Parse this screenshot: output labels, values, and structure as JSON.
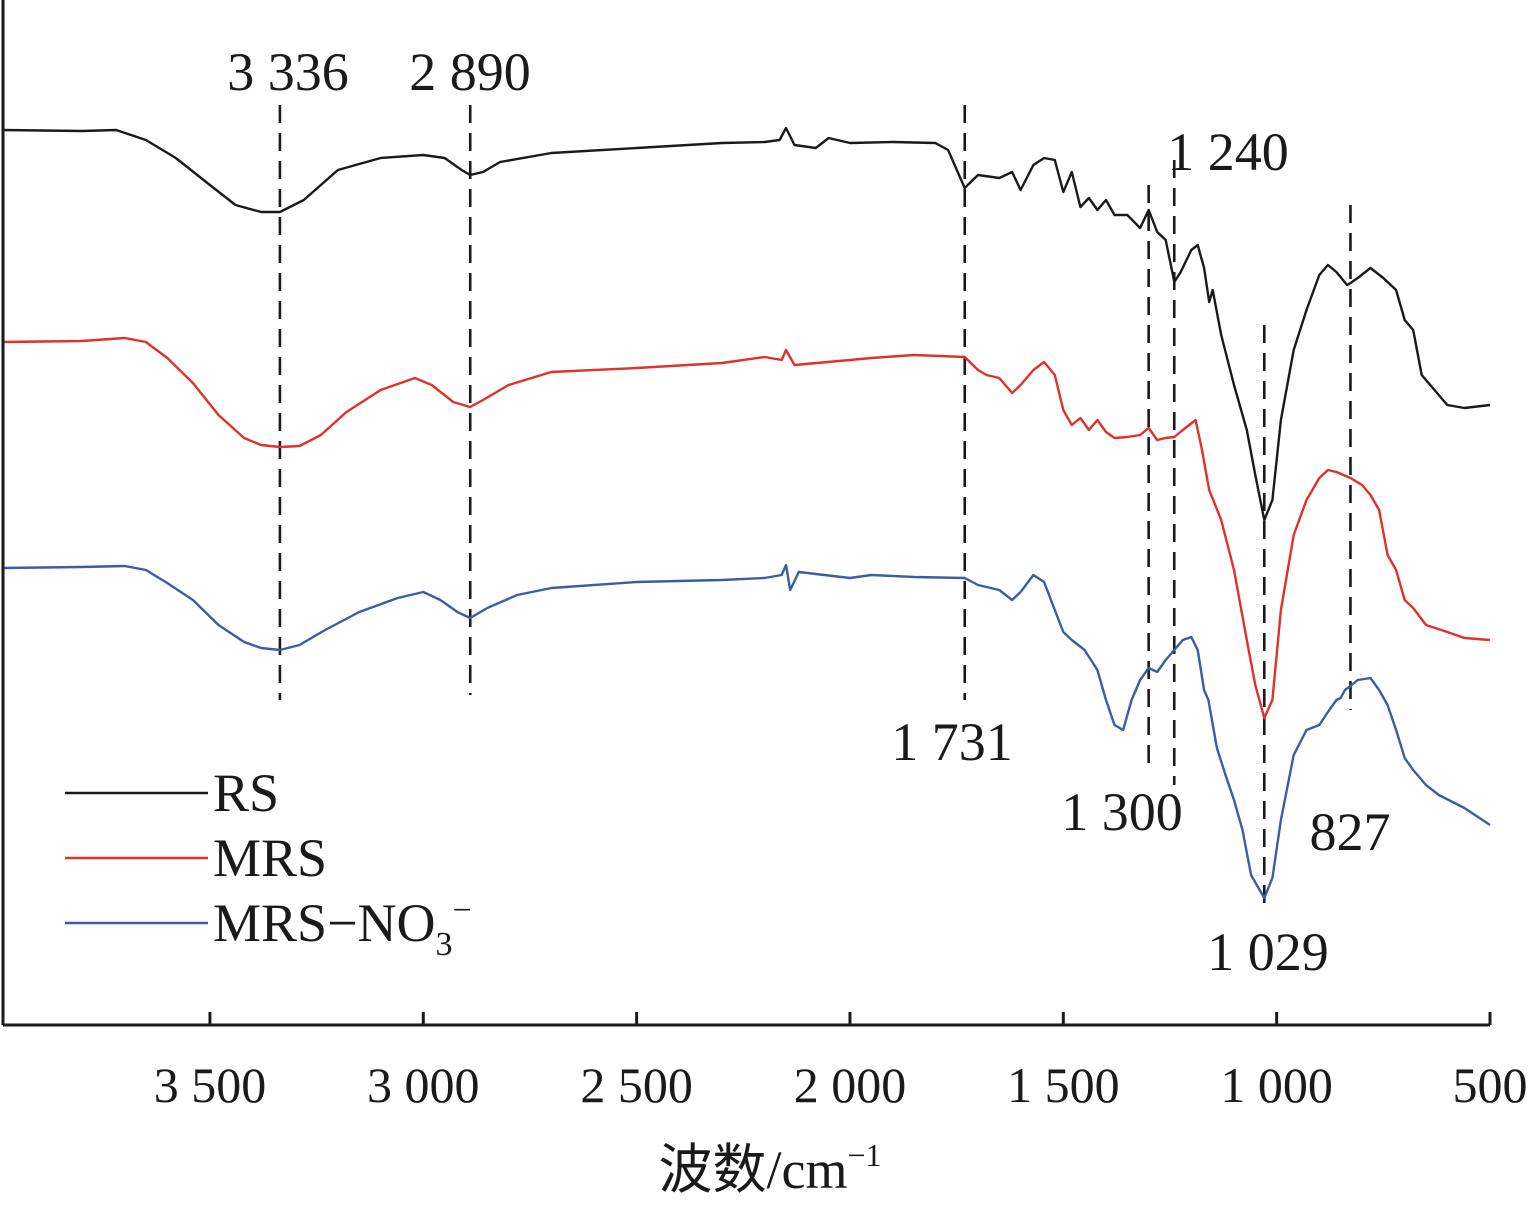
{
  "chart_data": {
    "type": "line",
    "title": "",
    "xlabel": "波数/cm",
    "xlabel_superscript": "−1",
    "ylabel": "",
    "xlim": [
      3985,
      500
    ],
    "x_reversed": true,
    "y_units": "arbitrary (transmittance, offset)",
    "xticks": [
      3500,
      3000,
      2500,
      2000,
      1500,
      1000,
      500
    ],
    "xtick_labels": [
      "3 500",
      "3 000",
      "2 500",
      "2 000",
      "1 500",
      "1 000",
      "500"
    ],
    "series": [
      {
        "name": "RS",
        "color": "#1a1a1a",
        "points": [
          [
            3985,
            130
          ],
          [
            3800,
            131
          ],
          [
            3720,
            130
          ],
          [
            3650,
            140
          ],
          [
            3580,
            158
          ],
          [
            3500,
            185
          ],
          [
            3440,
            205
          ],
          [
            3380,
            212
          ],
          [
            3336,
            212
          ],
          [
            3280,
            200
          ],
          [
            3200,
            170
          ],
          [
            3100,
            158
          ],
          [
            3000,
            155
          ],
          [
            2950,
            158
          ],
          [
            2910,
            170
          ],
          [
            2890,
            175
          ],
          [
            2860,
            172
          ],
          [
            2820,
            162
          ],
          [
            2700,
            153
          ],
          [
            2500,
            148
          ],
          [
            2300,
            143
          ],
          [
            2200,
            142
          ],
          [
            2165,
            140
          ],
          [
            2150,
            128
          ],
          [
            2130,
            145
          ],
          [
            2080,
            148
          ],
          [
            2050,
            138
          ],
          [
            2000,
            143
          ],
          [
            1900,
            142
          ],
          [
            1800,
            143
          ],
          [
            1770,
            150
          ],
          [
            1731,
            188
          ],
          [
            1700,
            175
          ],
          [
            1650,
            178
          ],
          [
            1620,
            172
          ],
          [
            1600,
            190
          ],
          [
            1570,
            165
          ],
          [
            1545,
            158
          ],
          [
            1520,
            160
          ],
          [
            1500,
            192
          ],
          [
            1480,
            172
          ],
          [
            1460,
            207
          ],
          [
            1440,
            198
          ],
          [
            1420,
            210
          ],
          [
            1400,
            200
          ],
          [
            1380,
            215
          ],
          [
            1350,
            215
          ],
          [
            1320,
            228
          ],
          [
            1300,
            210
          ],
          [
            1280,
            232
          ],
          [
            1260,
            240
          ],
          [
            1240,
            282
          ],
          [
            1225,
            272
          ],
          [
            1200,
            250
          ],
          [
            1185,
            245
          ],
          [
            1170,
            268
          ],
          [
            1158,
            302
          ],
          [
            1150,
            290
          ],
          [
            1130,
            335
          ],
          [
            1100,
            385
          ],
          [
            1070,
            430
          ],
          [
            1050,
            475
          ],
          [
            1029,
            520
          ],
          [
            1010,
            500
          ],
          [
            990,
            420
          ],
          [
            960,
            350
          ],
          [
            930,
            310
          ],
          [
            900,
            275
          ],
          [
            880,
            265
          ],
          [
            860,
            272
          ],
          [
            835,
            285
          ],
          [
            827,
            283
          ],
          [
            810,
            278
          ],
          [
            780,
            268
          ],
          [
            750,
            278
          ],
          [
            720,
            290
          ],
          [
            700,
            320
          ],
          [
            680,
            330
          ],
          [
            660,
            375
          ],
          [
            630,
            390
          ],
          [
            600,
            405
          ],
          [
            560,
            408
          ],
          [
            500,
            405
          ]
        ]
      },
      {
        "name": "MRS",
        "color": "#e0312b",
        "points": [
          [
            3985,
            342
          ],
          [
            3800,
            341
          ],
          [
            3700,
            338
          ],
          [
            3650,
            342
          ],
          [
            3600,
            358
          ],
          [
            3540,
            383
          ],
          [
            3480,
            415
          ],
          [
            3420,
            438
          ],
          [
            3380,
            445
          ],
          [
            3336,
            447
          ],
          [
            3290,
            446
          ],
          [
            3240,
            435
          ],
          [
            3180,
            412
          ],
          [
            3100,
            390
          ],
          [
            3020,
            378
          ],
          [
            2980,
            385
          ],
          [
            2930,
            402
          ],
          [
            2890,
            407
          ],
          [
            2860,
            400
          ],
          [
            2800,
            385
          ],
          [
            2700,
            372
          ],
          [
            2500,
            368
          ],
          [
            2300,
            363
          ],
          [
            2200,
            357
          ],
          [
            2160,
            360
          ],
          [
            2150,
            350
          ],
          [
            2130,
            365
          ],
          [
            2000,
            360
          ],
          [
            1950,
            358
          ],
          [
            1850,
            355
          ],
          [
            1731,
            357
          ],
          [
            1700,
            370
          ],
          [
            1680,
            375
          ],
          [
            1650,
            378
          ],
          [
            1620,
            393
          ],
          [
            1600,
            385
          ],
          [
            1570,
            370
          ],
          [
            1545,
            362
          ],
          [
            1520,
            375
          ],
          [
            1500,
            410
          ],
          [
            1480,
            425
          ],
          [
            1460,
            418
          ],
          [
            1440,
            430
          ],
          [
            1420,
            420
          ],
          [
            1400,
            432
          ],
          [
            1380,
            438
          ],
          [
            1350,
            437
          ],
          [
            1320,
            435
          ],
          [
            1300,
            428
          ],
          [
            1280,
            440
          ],
          [
            1260,
            438
          ],
          [
            1240,
            437
          ],
          [
            1220,
            430
          ],
          [
            1190,
            420
          ],
          [
            1175,
            450
          ],
          [
            1158,
            490
          ],
          [
            1130,
            520
          ],
          [
            1100,
            570
          ],
          [
            1070,
            640
          ],
          [
            1050,
            685
          ],
          [
            1029,
            718
          ],
          [
            1010,
            700
          ],
          [
            990,
            610
          ],
          [
            960,
            535
          ],
          [
            930,
            500
          ],
          [
            900,
            478
          ],
          [
            880,
            470
          ],
          [
            860,
            472
          ],
          [
            827,
            478
          ],
          [
            800,
            485
          ],
          [
            780,
            495
          ],
          [
            760,
            510
          ],
          [
            740,
            555
          ],
          [
            720,
            570
          ],
          [
            700,
            600
          ],
          [
            680,
            608
          ],
          [
            650,
            625
          ],
          [
            600,
            632
          ],
          [
            560,
            638
          ],
          [
            500,
            640
          ]
        ]
      },
      {
        "name": "MRS−NO₃⁻",
        "color": "#3a5ea6",
        "points": [
          [
            3985,
            568
          ],
          [
            3800,
            567
          ],
          [
            3700,
            566
          ],
          [
            3650,
            570
          ],
          [
            3600,
            583
          ],
          [
            3540,
            600
          ],
          [
            3480,
            625
          ],
          [
            3420,
            642
          ],
          [
            3380,
            648
          ],
          [
            3336,
            650
          ],
          [
            3290,
            645
          ],
          [
            3230,
            630
          ],
          [
            3150,
            612
          ],
          [
            3060,
            598
          ],
          [
            3000,
            592
          ],
          [
            2960,
            600
          ],
          [
            2920,
            612
          ],
          [
            2890,
            618
          ],
          [
            2850,
            608
          ],
          [
            2780,
            595
          ],
          [
            2700,
            588
          ],
          [
            2500,
            582
          ],
          [
            2300,
            580
          ],
          [
            2200,
            578
          ],
          [
            2160,
            575
          ],
          [
            2150,
            565
          ],
          [
            2140,
            590
          ],
          [
            2120,
            572
          ],
          [
            2000,
            578
          ],
          [
            1950,
            575
          ],
          [
            1850,
            577
          ],
          [
            1731,
            578
          ],
          [
            1700,
            585
          ],
          [
            1650,
            590
          ],
          [
            1620,
            600
          ],
          [
            1600,
            592
          ],
          [
            1570,
            575
          ],
          [
            1545,
            582
          ],
          [
            1520,
            610
          ],
          [
            1500,
            632
          ],
          [
            1480,
            640
          ],
          [
            1450,
            650
          ],
          [
            1420,
            670
          ],
          [
            1400,
            700
          ],
          [
            1380,
            725
          ],
          [
            1360,
            730
          ],
          [
            1340,
            700
          ],
          [
            1320,
            680
          ],
          [
            1300,
            668
          ],
          [
            1280,
            672
          ],
          [
            1260,
            660
          ],
          [
            1240,
            650
          ],
          [
            1220,
            640
          ],
          [
            1200,
            637
          ],
          [
            1185,
            650
          ],
          [
            1170,
            690
          ],
          [
            1160,
            700
          ],
          [
            1140,
            748
          ],
          [
            1120,
            775
          ],
          [
            1100,
            800
          ],
          [
            1080,
            830
          ],
          [
            1060,
            875
          ],
          [
            1040,
            890
          ],
          [
            1029,
            898
          ],
          [
            1010,
            878
          ],
          [
            990,
            820
          ],
          [
            960,
            755
          ],
          [
            930,
            730
          ],
          [
            900,
            725
          ],
          [
            880,
            712
          ],
          [
            860,
            700
          ],
          [
            850,
            698
          ],
          [
            840,
            690
          ],
          [
            827,
            686
          ],
          [
            810,
            680
          ],
          [
            780,
            678
          ],
          [
            760,
            690
          ],
          [
            740,
            705
          ],
          [
            720,
            730
          ],
          [
            700,
            758
          ],
          [
            680,
            770
          ],
          [
            650,
            785
          ],
          [
            620,
            795
          ],
          [
            560,
            808
          ],
          [
            500,
            825
          ]
        ]
      }
    ],
    "peak_lines": [
      3336,
      2890,
      1731,
      1300,
      1240,
      1029,
      827
    ],
    "annotations": [
      {
        "text": "3 336",
        "x": 3336
      },
      {
        "text": "2 890",
        "x": 2890
      },
      {
        "text": "1 731",
        "x": 1731
      },
      {
        "text": "1 300",
        "x": 1300
      },
      {
        "text": "1 240",
        "x": 1240
      },
      {
        "text": "1 029",
        "x": 1029
      },
      {
        "text": "827",
        "x": 827
      }
    ],
    "legend": {
      "placement": "bottom-left",
      "entries": [
        "RS",
        "MRS",
        "MRS−NO₃⁻"
      ]
    },
    "grid": false
  }
}
